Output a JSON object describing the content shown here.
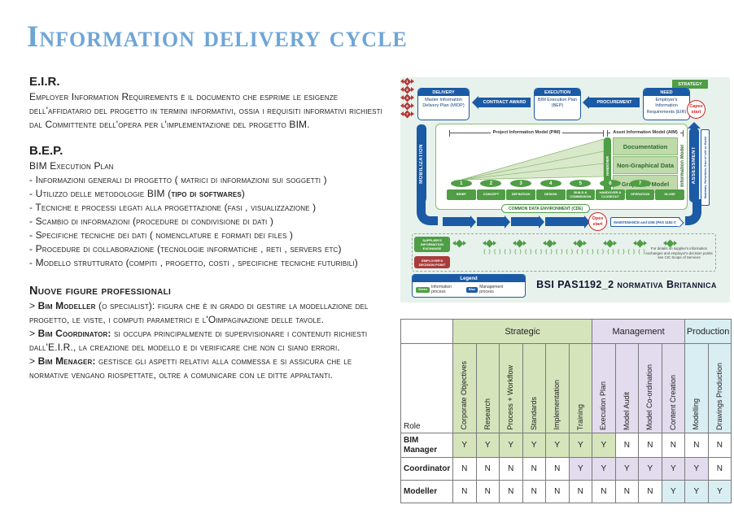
{
  "title": "Information delivery cycle",
  "sections": {
    "eir": {
      "heading": "E.I.R.",
      "lines": [
        [
          {
            "t": "Employer Information Requirements è il documento che esprime le esigenze dell'affidatario del progetto in termini informativi, ossia i requisiti informativi richiesti dal Committente dell'opera per l'implementazione del progetto BIM."
          }
        ]
      ]
    },
    "bep": {
      "heading": "B.E.P.",
      "lines": [
        [
          {
            "t": "BIM Execution Plan"
          }
        ],
        [
          {
            "t": "- Informazioni generali di progetto ( matrici di informazioni sui soggetti )"
          }
        ],
        [
          {
            "t": "- Utilizzo delle metodologie BIM ("
          },
          {
            "t": "tipo di softwares",
            "b": true
          },
          {
            "t": ")"
          }
        ],
        [
          {
            "t": "- Tecniche e processi legati alla progettazione (fasi , visualizzazione )"
          }
        ],
        [
          {
            "t": "- Scambio di informazioni (procedure di condivisione di dati )"
          }
        ],
        [
          {
            "t": "- Specifiche tecniche dei dati ( nomenclature e formati dei files )"
          }
        ],
        [
          {
            "t": "- Procedure di collaborazione (tecnologie informatiche , reti , servers etc)"
          }
        ],
        [
          {
            "t": "- Modello strutturato (compiti , progetto, costi , specifiche tecniche futuribili)"
          }
        ]
      ]
    },
    "figures": {
      "heading": "Nuove figure professionali",
      "lines": [
        [
          {
            "t": "> "
          },
          {
            "t": "Bim Modeller",
            "b": true
          },
          {
            "t": " (o specialist): figura che è in grado di gestire la modellazione del progetto, le viste, i computi parametrici e l'Oimpaginazione delle tavole."
          }
        ],
        [
          {
            "t": "> "
          },
          {
            "t": "Bim Coordinator:",
            "b": true
          },
          {
            "t": " si occupa principalmente di supervisionare i contenuti richiesti dall'E.I.R., la creazione del modello e di verificare che non ci siano errori."
          }
        ],
        [
          {
            "t": "> "
          },
          {
            "t": "Bim Menager:",
            "b": true
          },
          {
            "t": " gestisce gli aspetti relativi alla commessa e si assicura che le normative vengano riospettate, oltre a comunicare con le ditte appaltanti."
          }
        ]
      ]
    }
  },
  "diagram": {
    "strategy_label": "STRATEGY",
    "boxes": [
      {
        "header": "DELIVERY",
        "body": "Master Information Delivery Plan (MIDP)"
      },
      {
        "header": "EXECUTION",
        "body": "BIM Execution Plan (BEP)"
      },
      {
        "header": "NEED",
        "body": "Employer's Information Requirements (EIR)"
      }
    ],
    "arrows": {
      "contract": "CONTRACT AWARD",
      "procurement": "PROCUREMENT"
    },
    "capex_label": "Capex start",
    "opex_label": "Opex start",
    "pim_label": "Project Information Model (PIM)",
    "aim_label": "Asset Information Model (AIM)",
    "handover_label": "HANDOVER",
    "information_model_label": "Information Model",
    "mobilization_label": "MOBILIZATION",
    "assessment_label": "ASSESSMENT",
    "assessment_note": "Maintain, Refurbish, End of Life or Build",
    "layers": [
      "Documentation",
      "Non-Graphical Data",
      "Graphical Model"
    ],
    "stages": [
      {
        "num": "1",
        "label": "BRIEF"
      },
      {
        "num": "2",
        "label": "CONCEPT"
      },
      {
        "num": "3",
        "label": "DEFINITION"
      },
      {
        "num": "4",
        "label": "DESIGN"
      },
      {
        "num": "5",
        "label": "BUILD & COMMISSION"
      },
      {
        "num": "6",
        "label": "HANDOVER & CLOSEOUT"
      },
      {
        "num": "7",
        "label": "OPERATION"
      },
      {
        "num": "",
        "label": "IN USE"
      }
    ],
    "cde_label": "COMMON DATA ENVIRONMENT (CDE)",
    "maintenance_label": "MAINTENANCE and USE (PAS 1192-3)",
    "supplier_label": "SUPPLIER'S INFORMATION EXCHANGE",
    "employer_label": "EMPLOYER'S DECISION POINT",
    "supplier_marker_count": 8,
    "decision_numbers": [
      "1",
      "2",
      "3",
      "6",
      "7"
    ],
    "braces_row": "{ } { } { } { } { } { } { } { } { } { } { } { } { } { } { } { }",
    "side_note": "For details on supplier's information exchanges and employer's decision points see CIC Scope of Services",
    "legend": {
      "title": "Legend",
      "items": [
        {
          "chip": "Green",
          "label": "Information process",
          "color": "#4f9d45"
        },
        {
          "chip": "Blue",
          "label": "Management process",
          "color": "#1b5aa5"
        }
      ]
    },
    "caption": "BSI PAS1192_2 normativa Britannica",
    "colors": {
      "blue": "#1b5aa5",
      "green": "#4f9d45",
      "red": "#cf2626",
      "mint": "#e7f2ec"
    }
  },
  "table": {
    "groups": [
      {
        "label": "Strategic",
        "span": 6,
        "color": "#d6e4bc"
      },
      {
        "label": "Management",
        "span": 4,
        "color": "#e2dcee"
      },
      {
        "label": "Production",
        "span": 2,
        "color": "#d9eef3"
      }
    ],
    "role_header": "Role",
    "columns": [
      "Corporate Objectives",
      "Research",
      "Process + Workflow",
      "Standards",
      "Implementation",
      "Training",
      "Execution Plan",
      "Model  Audit",
      "Model Co-ordination",
      "Content Creation",
      "Modelling",
      "Drawings Production"
    ],
    "rows": [
      {
        "role": "BIM Manager",
        "y_color": "#d6e4bc",
        "values": [
          "Y",
          "Y",
          "Y",
          "Y",
          "Y",
          "Y",
          "Y",
          "N",
          "N",
          "N",
          "N",
          "N"
        ]
      },
      {
        "role": "Coordinator",
        "y_color": "#e2dcee",
        "values": [
          "N",
          "N",
          "N",
          "N",
          "N",
          "Y",
          "Y",
          "Y",
          "Y",
          "Y",
          "Y",
          "N"
        ]
      },
      {
        "role": "Modeller",
        "y_color": "#d9eef3",
        "values": [
          "N",
          "N",
          "N",
          "N",
          "N",
          "N",
          "N",
          "N",
          "N",
          "Y",
          "Y",
          "Y"
        ]
      }
    ]
  }
}
